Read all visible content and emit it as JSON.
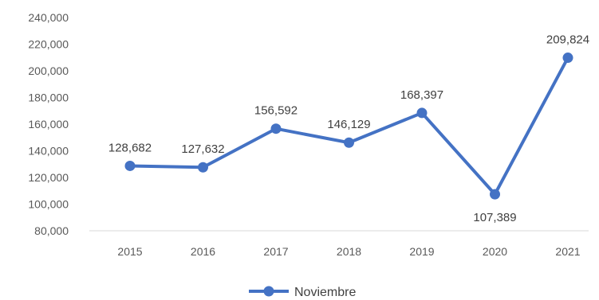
{
  "chart_data": {
    "type": "line",
    "categories": [
      "2015",
      "2016",
      "2017",
      "2018",
      "2019",
      "2020",
      "2021"
    ],
    "series": [
      {
        "name": "Noviembre",
        "values": [
          128682,
          127632,
          156592,
          146129,
          168397,
          107389,
          209824
        ],
        "labels": [
          "128,682",
          "127,632",
          "156,592",
          "146,129",
          "168,397",
          "107,389",
          "209,824"
        ]
      }
    ],
    "yticks": [
      "80,000",
      "100,000",
      "120,000",
      "140,000",
      "160,000",
      "180,000",
      "200,000",
      "220,000",
      "240,000"
    ],
    "ylim": [
      80000,
      240000
    ],
    "grid": false,
    "legend_position": "bottom",
    "color": "#4472c4"
  }
}
